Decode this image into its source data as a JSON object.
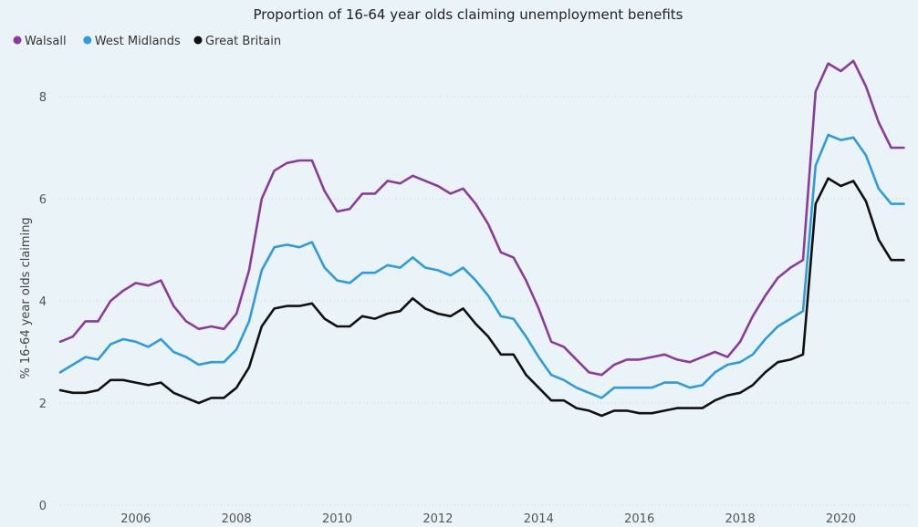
{
  "chart_data": {
    "type": "line",
    "title": "Proportion of 16-64 year olds claiming unemployment benefits",
    "ylabel": "% 16-64 year olds claiming",
    "xlabel": "",
    "ylim": [
      0,
      9
    ],
    "xlim": [
      2005.0,
      2021.833
    ],
    "yticks": [
      "0",
      "2",
      "4",
      "6",
      "8"
    ],
    "xticks": [
      "2006",
      "2008",
      "2010",
      "2012",
      "2014",
      "2016",
      "2018",
      "2020"
    ],
    "legend_position": "top-left",
    "grid": "horizontal dotted",
    "x": [
      2005.0,
      2005.25,
      2005.5,
      2005.75,
      2006.0,
      2006.25,
      2006.5,
      2006.75,
      2007.0,
      2007.25,
      2007.5,
      2007.75,
      2008.0,
      2008.25,
      2008.5,
      2008.75,
      2009.0,
      2009.25,
      2009.5,
      2009.75,
      2010.0,
      2010.25,
      2010.5,
      2010.75,
      2011.0,
      2011.25,
      2011.5,
      2011.75,
      2012.0,
      2012.25,
      2012.5,
      2012.75,
      2013.0,
      2013.25,
      2013.5,
      2013.75,
      2014.0,
      2014.25,
      2014.5,
      2014.75,
      2015.0,
      2015.25,
      2015.5,
      2015.75,
      2016.0,
      2016.25,
      2016.5,
      2016.75,
      2017.0,
      2017.25,
      2017.5,
      2017.75,
      2018.0,
      2018.25,
      2018.5,
      2018.75,
      2019.0,
      2019.25,
      2019.5,
      2019.75,
      2020.0,
      2020.25,
      2020.5,
      2020.75,
      2021.0,
      2021.25,
      2021.5,
      2021.75
    ],
    "series": [
      {
        "name": "Walsall",
        "color": "#8a3b9f",
        "values": [
          3.2,
          3.3,
          3.6,
          3.6,
          4.0,
          4.2,
          4.35,
          4.3,
          4.4,
          3.9,
          3.6,
          3.45,
          3.5,
          3.45,
          3.75,
          4.6,
          6.0,
          6.55,
          6.7,
          6.75,
          6.75,
          6.15,
          5.75,
          5.8,
          6.1,
          6.1,
          6.35,
          6.3,
          6.45,
          6.35,
          6.25,
          6.1,
          6.2,
          5.9,
          5.5,
          4.95,
          4.85,
          4.4,
          3.85,
          3.2,
          3.1,
          2.85,
          2.6,
          2.55,
          2.75,
          2.85,
          2.85,
          2.9,
          2.95,
          2.85,
          2.8,
          2.9,
          3.0,
          2.9,
          3.2,
          3.7,
          4.1,
          4.45,
          4.65,
          4.8,
          8.1,
          8.65,
          8.5,
          8.7,
          8.2,
          7.5,
          7.0,
          7.0
        ]
      },
      {
        "name": "West Midlands",
        "color": "#2e9be0",
        "values": [
          2.6,
          2.75,
          2.9,
          2.85,
          3.15,
          3.25,
          3.2,
          3.1,
          3.25,
          3.0,
          2.9,
          2.75,
          2.8,
          2.8,
          3.05,
          3.6,
          4.6,
          5.05,
          5.1,
          5.05,
          5.15,
          4.65,
          4.4,
          4.35,
          4.55,
          4.55,
          4.7,
          4.65,
          4.85,
          4.65,
          4.6,
          4.5,
          4.65,
          4.4,
          4.1,
          3.7,
          3.65,
          3.3,
          2.9,
          2.55,
          2.45,
          2.3,
          2.2,
          2.1,
          2.3,
          2.3,
          2.3,
          2.3,
          2.4,
          2.4,
          2.3,
          2.35,
          2.6,
          2.75,
          2.8,
          2.95,
          3.25,
          3.5,
          3.65,
          3.8,
          6.65,
          7.25,
          7.15,
          7.2,
          6.85,
          6.2,
          5.9,
          5.9
        ]
      },
      {
        "name": "Great Britain",
        "color": "#111111",
        "values": [
          2.25,
          2.2,
          2.2,
          2.25,
          2.45,
          2.45,
          2.4,
          2.35,
          2.4,
          2.2,
          2.1,
          2.0,
          2.1,
          2.1,
          2.3,
          2.7,
          3.5,
          3.85,
          3.9,
          3.9,
          3.95,
          3.65,
          3.5,
          3.5,
          3.7,
          3.65,
          3.75,
          3.8,
          4.05,
          3.85,
          3.75,
          3.7,
          3.85,
          3.55,
          3.3,
          2.95,
          2.95,
          2.55,
          2.3,
          2.05,
          2.05,
          1.9,
          1.85,
          1.75,
          1.85,
          1.85,
          1.8,
          1.8,
          1.85,
          1.9,
          1.9,
          1.9,
          2.05,
          2.15,
          2.2,
          2.35,
          2.6,
          2.8,
          2.85,
          2.95,
          5.9,
          6.4,
          6.25,
          6.35,
          5.95,
          5.2,
          4.8,
          4.8
        ]
      }
    ]
  }
}
